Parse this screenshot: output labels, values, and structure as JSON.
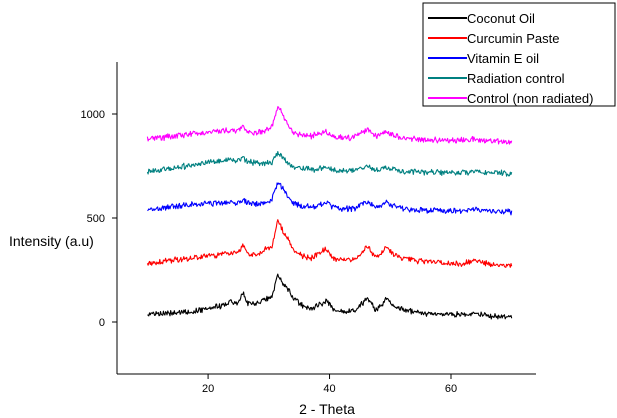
{
  "chart_data": {
    "type": "line",
    "title": "",
    "xlabel": "2 - Theta",
    "ylabel": "Intensity (a.u)",
    "xlim": [
      5,
      74
    ],
    "ylim": [
      -250,
      1250
    ],
    "xticks": [
      20,
      40,
      60
    ],
    "yticks": [
      0,
      500,
      1000
    ],
    "grid": false,
    "legend_position": "top-right",
    "series": [
      {
        "name": "Coconut Oil",
        "color": "#000000",
        "baseline": 40,
        "x": [
          10,
          12,
          14,
          16,
          18,
          20,
          22,
          23.5,
          25,
          25.8,
          26.5,
          28,
          29,
          30.5,
          31.5,
          32.2,
          33,
          34,
          35.5,
          37,
          39.5,
          40.5,
          42,
          44,
          46.3,
          47.5,
          48.5,
          49.3,
          50.5,
          52,
          54,
          56,
          58,
          60,
          62,
          64,
          66,
          68,
          70
        ],
        "values": [
          40,
          42,
          45,
          48,
          52,
          62,
          78,
          95,
          90,
          148,
          92,
          85,
          105,
          118,
          235,
          188,
          162,
          115,
          82,
          62,
          102,
          62,
          52,
          55,
          112,
          62,
          72,
          112,
          82,
          62,
          47,
          40,
          37,
          35,
          37,
          42,
          30,
          25,
          22
        ]
      },
      {
        "name": "Curcumin Paste",
        "color": "#ff0000",
        "baseline": 285,
        "x": [
          10,
          12,
          14,
          16,
          18,
          20,
          22,
          23.5,
          25,
          25.8,
          26.5,
          28,
          29,
          30.5,
          31.5,
          32.2,
          33,
          34,
          35.5,
          37,
          39.5,
          40.5,
          42,
          44,
          46.3,
          47.5,
          48.5,
          49.3,
          50.5,
          52,
          54,
          56,
          58,
          60,
          62,
          64,
          66,
          68,
          70
        ],
        "values": [
          285,
          290,
          297,
          303,
          310,
          318,
          325,
          332,
          335,
          375,
          330,
          325,
          345,
          360,
          495,
          445,
          410,
          345,
          318,
          308,
          355,
          308,
          298,
          300,
          365,
          312,
          330,
          360,
          325,
          305,
          295,
          290,
          285,
          280,
          282,
          295,
          280,
          275,
          272
        ]
      },
      {
        "name": "Vitamin E oil",
        "color": "#0000ff",
        "baseline": 545,
        "x": [
          10,
          12,
          14,
          16,
          18,
          20,
          22,
          23.5,
          25,
          25.8,
          26.5,
          28,
          29,
          30.5,
          31.5,
          32.2,
          33,
          34,
          35.5,
          37,
          39.5,
          40.5,
          42,
          44,
          46.3,
          47.5,
          48.5,
          49.3,
          50.5,
          52,
          54,
          56,
          58,
          60,
          62,
          64,
          66,
          68,
          70
        ],
        "values": [
          545,
          548,
          553,
          560,
          565,
          570,
          574,
          577,
          570,
          592,
          572,
          565,
          572,
          590,
          672,
          645,
          610,
          570,
          558,
          553,
          575,
          553,
          546,
          546,
          578,
          552,
          558,
          575,
          556,
          546,
          540,
          537,
          534,
          532,
          534,
          543,
          534,
          530,
          528
        ]
      },
      {
        "name": "Radiation  control",
        "color": "#008080",
        "baseline": 725,
        "x": [
          10,
          12,
          14,
          16,
          18,
          20,
          22,
          23.5,
          25,
          25.8,
          26.5,
          28,
          29,
          30.5,
          31.5,
          32.2,
          33,
          34,
          35.5,
          37,
          39.5,
          40.5,
          42,
          44,
          46.3,
          47.5,
          48.5,
          49.3,
          50.5,
          52,
          54,
          56,
          58,
          60,
          62,
          64,
          66,
          68,
          70
        ],
        "values": [
          725,
          730,
          738,
          748,
          758,
          768,
          775,
          780,
          775,
          785,
          773,
          765,
          760,
          770,
          815,
          790,
          770,
          748,
          740,
          733,
          742,
          733,
          728,
          728,
          748,
          733,
          737,
          745,
          732,
          725,
          722,
          720,
          718,
          717,
          718,
          722,
          717,
          715,
          713
        ]
      },
      {
        "name": "Control (non radiated)",
        "color": "#ff00ff",
        "baseline": 880,
        "x": [
          10,
          12,
          14,
          16,
          18,
          20,
          22,
          23.5,
          25,
          25.8,
          26.5,
          28,
          29,
          30.5,
          31.5,
          32.2,
          33,
          34,
          35.5,
          37,
          39.5,
          40.5,
          42,
          44,
          46.3,
          47.5,
          48.5,
          49.3,
          50.5,
          52,
          54,
          56,
          58,
          60,
          62,
          64,
          66,
          68,
          70
        ],
        "values": [
          880,
          885,
          892,
          900,
          907,
          913,
          918,
          922,
          918,
          945,
          915,
          910,
          918,
          935,
          1040,
          1000,
          950,
          912,
          900,
          893,
          915,
          893,
          886,
          886,
          925,
          893,
          902,
          920,
          896,
          885,
          880,
          877,
          875,
          873,
          875,
          880,
          872,
          868,
          865
        ]
      }
    ]
  }
}
